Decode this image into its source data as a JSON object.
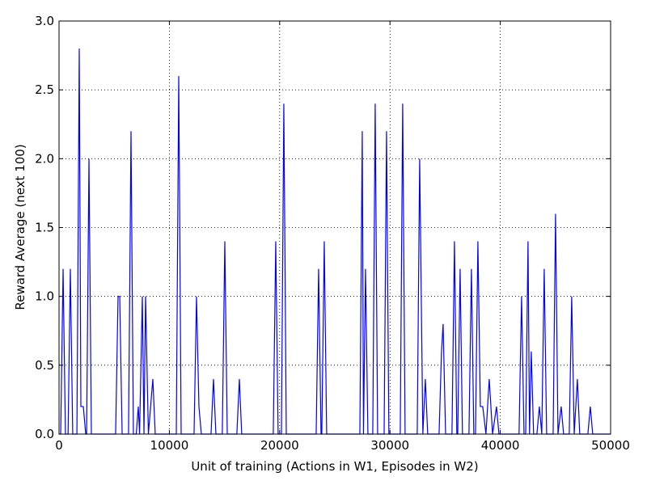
{
  "chart_data": {
    "type": "line",
    "x_label": "Unit of training (Actions in W1, Episodes in W2)",
    "y_label": "Reward Average (next 100)",
    "xlim": [
      0,
      50000
    ],
    "ylim": [
      0,
      3.0
    ],
    "xticks": [
      0,
      10000,
      20000,
      30000,
      40000,
      50000
    ],
    "yticks": [
      {
        "value": 0,
        "label": "0.0"
      },
      {
        "value": 0.5,
        "label": "0.5"
      },
      {
        "value": 1,
        "label": "1.0"
      },
      {
        "value": 1.5,
        "label": "1.5"
      },
      {
        "value": 2,
        "label": "2.0"
      },
      {
        "value": 2.5,
        "label": "2.5"
      },
      {
        "value": 3,
        "label": "3.0"
      }
    ],
    "grid": true,
    "series": [
      {
        "color": "#0000ff",
        "x": [
          0,
          150,
          367,
          580,
          820,
          1026,
          1240,
          1620,
          1833,
          1980,
          2200,
          2420,
          2500,
          2713,
          2930,
          5130,
          5350,
          5500,
          5720,
          6300,
          6524,
          6740,
          7000,
          7184,
          7300,
          7550,
          7700,
          7843,
          8100,
          8503,
          8720,
          10630,
          10850,
          11070,
          12240,
          12461,
          12681,
          12900,
          13780,
          14000,
          14220,
          14800,
          15027,
          15250,
          16120,
          16346,
          16560,
          19420,
          19644,
          19860,
          20160,
          20377,
          20600,
          23310,
          23529,
          23750,
          23820,
          24042,
          24260,
          27270,
          27487,
          27600,
          27780,
          28000,
          28440,
          28660,
          28880,
          29470,
          29686,
          29900,
          30930,
          31152,
          31370,
          32470,
          32691,
          32980,
          33204,
          33420,
          34450,
          34671,
          34817,
          35040,
          35620,
          35844,
          36060,
          36140,
          36357,
          36570,
          37160,
          37383,
          37600,
          37750,
          37970,
          38190,
          38409,
          38700,
          38996,
          39300,
          39656,
          39880,
          41700,
          41928,
          42150,
          42300,
          42514,
          42650,
          42808,
          43020,
          43320,
          43541,
          43760,
          43981,
          44200,
          44790,
          45007,
          45230,
          45520,
          45740,
          46250,
          46473,
          46700,
          46986,
          47200,
          47940,
          48159,
          48380,
          50000
        ],
        "values": [
          0,
          0,
          1.2,
          0,
          0,
          1.2,
          0,
          0,
          2.8,
          0.2,
          0.2,
          0,
          0,
          2.0,
          0,
          0,
          1.0,
          1.0,
          0,
          0,
          2.2,
          0,
          0,
          0.2,
          0,
          1.0,
          0,
          1.0,
          0,
          0.4,
          0,
          0,
          2.6,
          0,
          0,
          1.0,
          0.2,
          0,
          0,
          0.4,
          0,
          0,
          1.4,
          0,
          0,
          0.4,
          0,
          0,
          1.4,
          0,
          0,
          2.4,
          0,
          0,
          1.2,
          0,
          0,
          1.4,
          0,
          0,
          2.2,
          0,
          1.2,
          0,
          0,
          2.4,
          0,
          0,
          2.2,
          0,
          0,
          2.4,
          0,
          0,
          2.0,
          0,
          0.4,
          0,
          0,
          0.6,
          0.8,
          0,
          0,
          1.4,
          0,
          0,
          1.2,
          0,
          0,
          1.2,
          0,
          0,
          1.4,
          0.2,
          0.2,
          0,
          0.4,
          0,
          0.2,
          0,
          0,
          1.0,
          0,
          0,
          1.4,
          0,
          0.6,
          0,
          0,
          0.2,
          0,
          1.2,
          0,
          0,
          1.6,
          0,
          0.2,
          0,
          0,
          1.0,
          0,
          0.4,
          0,
          0,
          0.2,
          0,
          0
        ]
      }
    ]
  }
}
